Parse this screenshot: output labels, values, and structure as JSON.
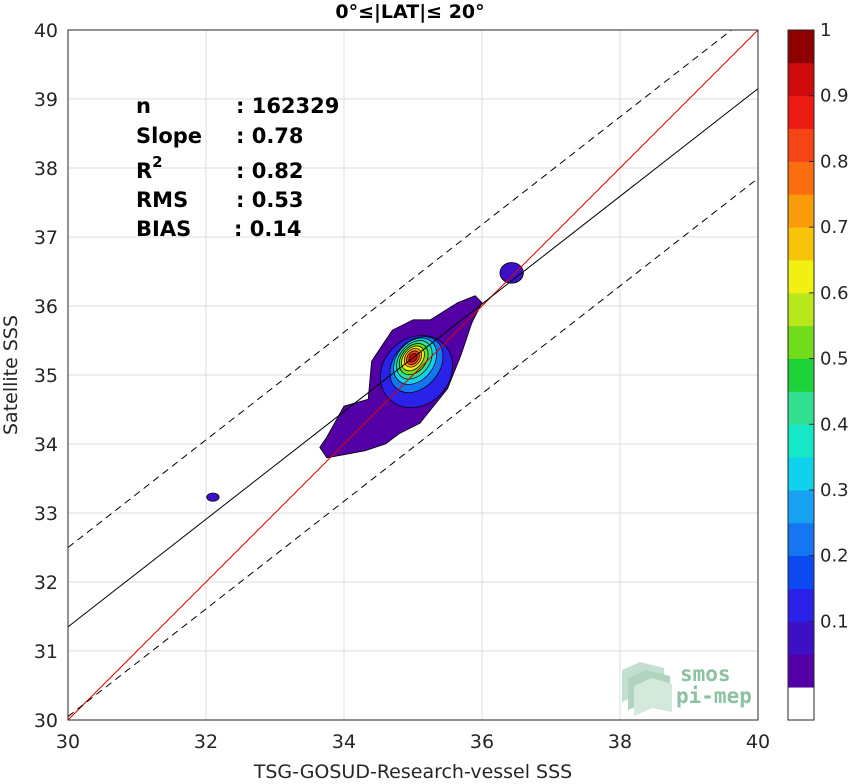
{
  "chart_data": {
    "type": "contour",
    "title": "0°≤|LAT|≤ 20°",
    "xlabel": "TSG-GOSUD-Research-vessel SSS",
    "ylabel": "Satellite SSS",
    "xlim": [
      30,
      40
    ],
    "ylim": [
      30,
      40
    ],
    "xticks": [
      "30",
      "32",
      "34",
      "36",
      "38",
      "40"
    ],
    "yticks": [
      "30",
      "31",
      "32",
      "33",
      "34",
      "35",
      "36",
      "37",
      "38",
      "39",
      "40"
    ],
    "stats": [
      {
        "label": "n",
        "value": ": 162329"
      },
      {
        "label": "Slope",
        "value": ": 0.78"
      },
      {
        "label": "R",
        "sup": "2",
        "value": ": 0.82"
      },
      {
        "label": "RMS",
        "value": ": 0.53"
      },
      {
        "label": "BIAS",
        "value": ": 0.14"
      }
    ],
    "reference_lines": [
      {
        "kind": "one-to-one",
        "color": "#e00000",
        "style": "solid",
        "intercept": 0,
        "slope": 1
      },
      {
        "kind": "regression",
        "color": "#000000",
        "style": "solid",
        "intercept": 7.95,
        "slope": 0.78
      },
      {
        "kind": "regression-upper",
        "color": "#000000",
        "style": "dashed",
        "intercept": 9.1,
        "slope": 0.78
      },
      {
        "kind": "regression-lower",
        "color": "#000000",
        "style": "dashed",
        "intercept": 6.65,
        "slope": 0.78
      }
    ],
    "density_peak": {
      "x": 35.0,
      "y": 35.25,
      "value": 1.0
    },
    "contour_levels": [
      0.05,
      0.1,
      0.15,
      0.2,
      0.25,
      0.3,
      0.35,
      0.4,
      0.45,
      0.5,
      0.55,
      0.6,
      0.65,
      0.7,
      0.75,
      0.8,
      0.85,
      0.9,
      0.95,
      1.0
    ],
    "regions": [
      {
        "name": "main-cluster",
        "outline": [
          [
            33.75,
            33.8
          ],
          [
            34.3,
            33.9
          ],
          [
            34.6,
            34.0
          ],
          [
            34.8,
            34.15
          ],
          [
            35.1,
            34.3
          ],
          [
            35.5,
            34.8
          ],
          [
            35.7,
            35.3
          ],
          [
            35.85,
            35.75
          ],
          [
            36.0,
            36.05
          ],
          [
            35.9,
            36.15
          ],
          [
            35.65,
            36.05
          ],
          [
            35.25,
            35.8
          ],
          [
            35.0,
            35.8
          ],
          [
            34.7,
            35.65
          ],
          [
            34.4,
            35.2
          ],
          [
            34.35,
            34.65
          ],
          [
            34.0,
            34.55
          ],
          [
            33.75,
            34.1
          ],
          [
            33.65,
            33.95
          ]
        ],
        "levels": [
          {
            "cx": 35.05,
            "cy": 35.05,
            "rx": 0.48,
            "ry": 0.56,
            "angle": 45,
            "value": 0.15
          },
          {
            "cx": 35.05,
            "cy": 35.15,
            "rx": 0.33,
            "ry": 0.45,
            "angle": 40,
            "value": 0.25
          },
          {
            "cx": 35.03,
            "cy": 35.2,
            "rx": 0.27,
            "ry": 0.37,
            "angle": 38,
            "value": 0.35
          },
          {
            "cx": 35.02,
            "cy": 35.22,
            "rx": 0.22,
            "ry": 0.31,
            "angle": 38,
            "value": 0.45
          },
          {
            "cx": 35.01,
            "cy": 35.23,
            "rx": 0.18,
            "ry": 0.25,
            "angle": 38,
            "value": 0.55
          },
          {
            "cx": 35.0,
            "cy": 35.24,
            "rx": 0.14,
            "ry": 0.2,
            "angle": 38,
            "value": 0.65
          },
          {
            "cx": 35.0,
            "cy": 35.25,
            "rx": 0.11,
            "ry": 0.15,
            "angle": 38,
            "value": 0.75
          },
          {
            "cx": 35.0,
            "cy": 35.25,
            "rx": 0.08,
            "ry": 0.11,
            "angle": 38,
            "value": 0.85
          },
          {
            "cx": 35.0,
            "cy": 35.25,
            "rx": 0.05,
            "ry": 0.07,
            "angle": 38,
            "value": 0.95
          }
        ]
      },
      {
        "name": "blob-upper-right",
        "cx": 36.43,
        "cy": 36.48,
        "rx": 0.17,
        "ry": 0.15,
        "value": 0.1
      },
      {
        "name": "blob-left",
        "cx": 32.1,
        "cy": 33.23,
        "rx": 0.09,
        "ry": 0.06,
        "value": 0.1
      }
    ],
    "colorbar": {
      "ticks": [
        "0.1",
        "0.2",
        "0.3",
        "0.4",
        "0.5",
        "0.6",
        "0.7",
        "0.8",
        "0.9",
        "1"
      ],
      "range": [
        0,
        1
      ],
      "colors": [
        "#ffffff",
        "#5200a6",
        "#3d10c8",
        "#2a22e8",
        "#0b4af2",
        "#1676f1",
        "#16a2f0",
        "#10d2ec",
        "#15e8c8",
        "#30e090",
        "#1fd23a",
        "#70dc1a",
        "#b8e81a",
        "#f2f010",
        "#f8c40a",
        "#fa9c0a",
        "#fa6e10",
        "#f64414",
        "#ec1c12",
        "#d00b0b",
        "#8f0000"
      ]
    }
  },
  "logo": {
    "line1": "smos",
    "line2": "pi-mep"
  }
}
